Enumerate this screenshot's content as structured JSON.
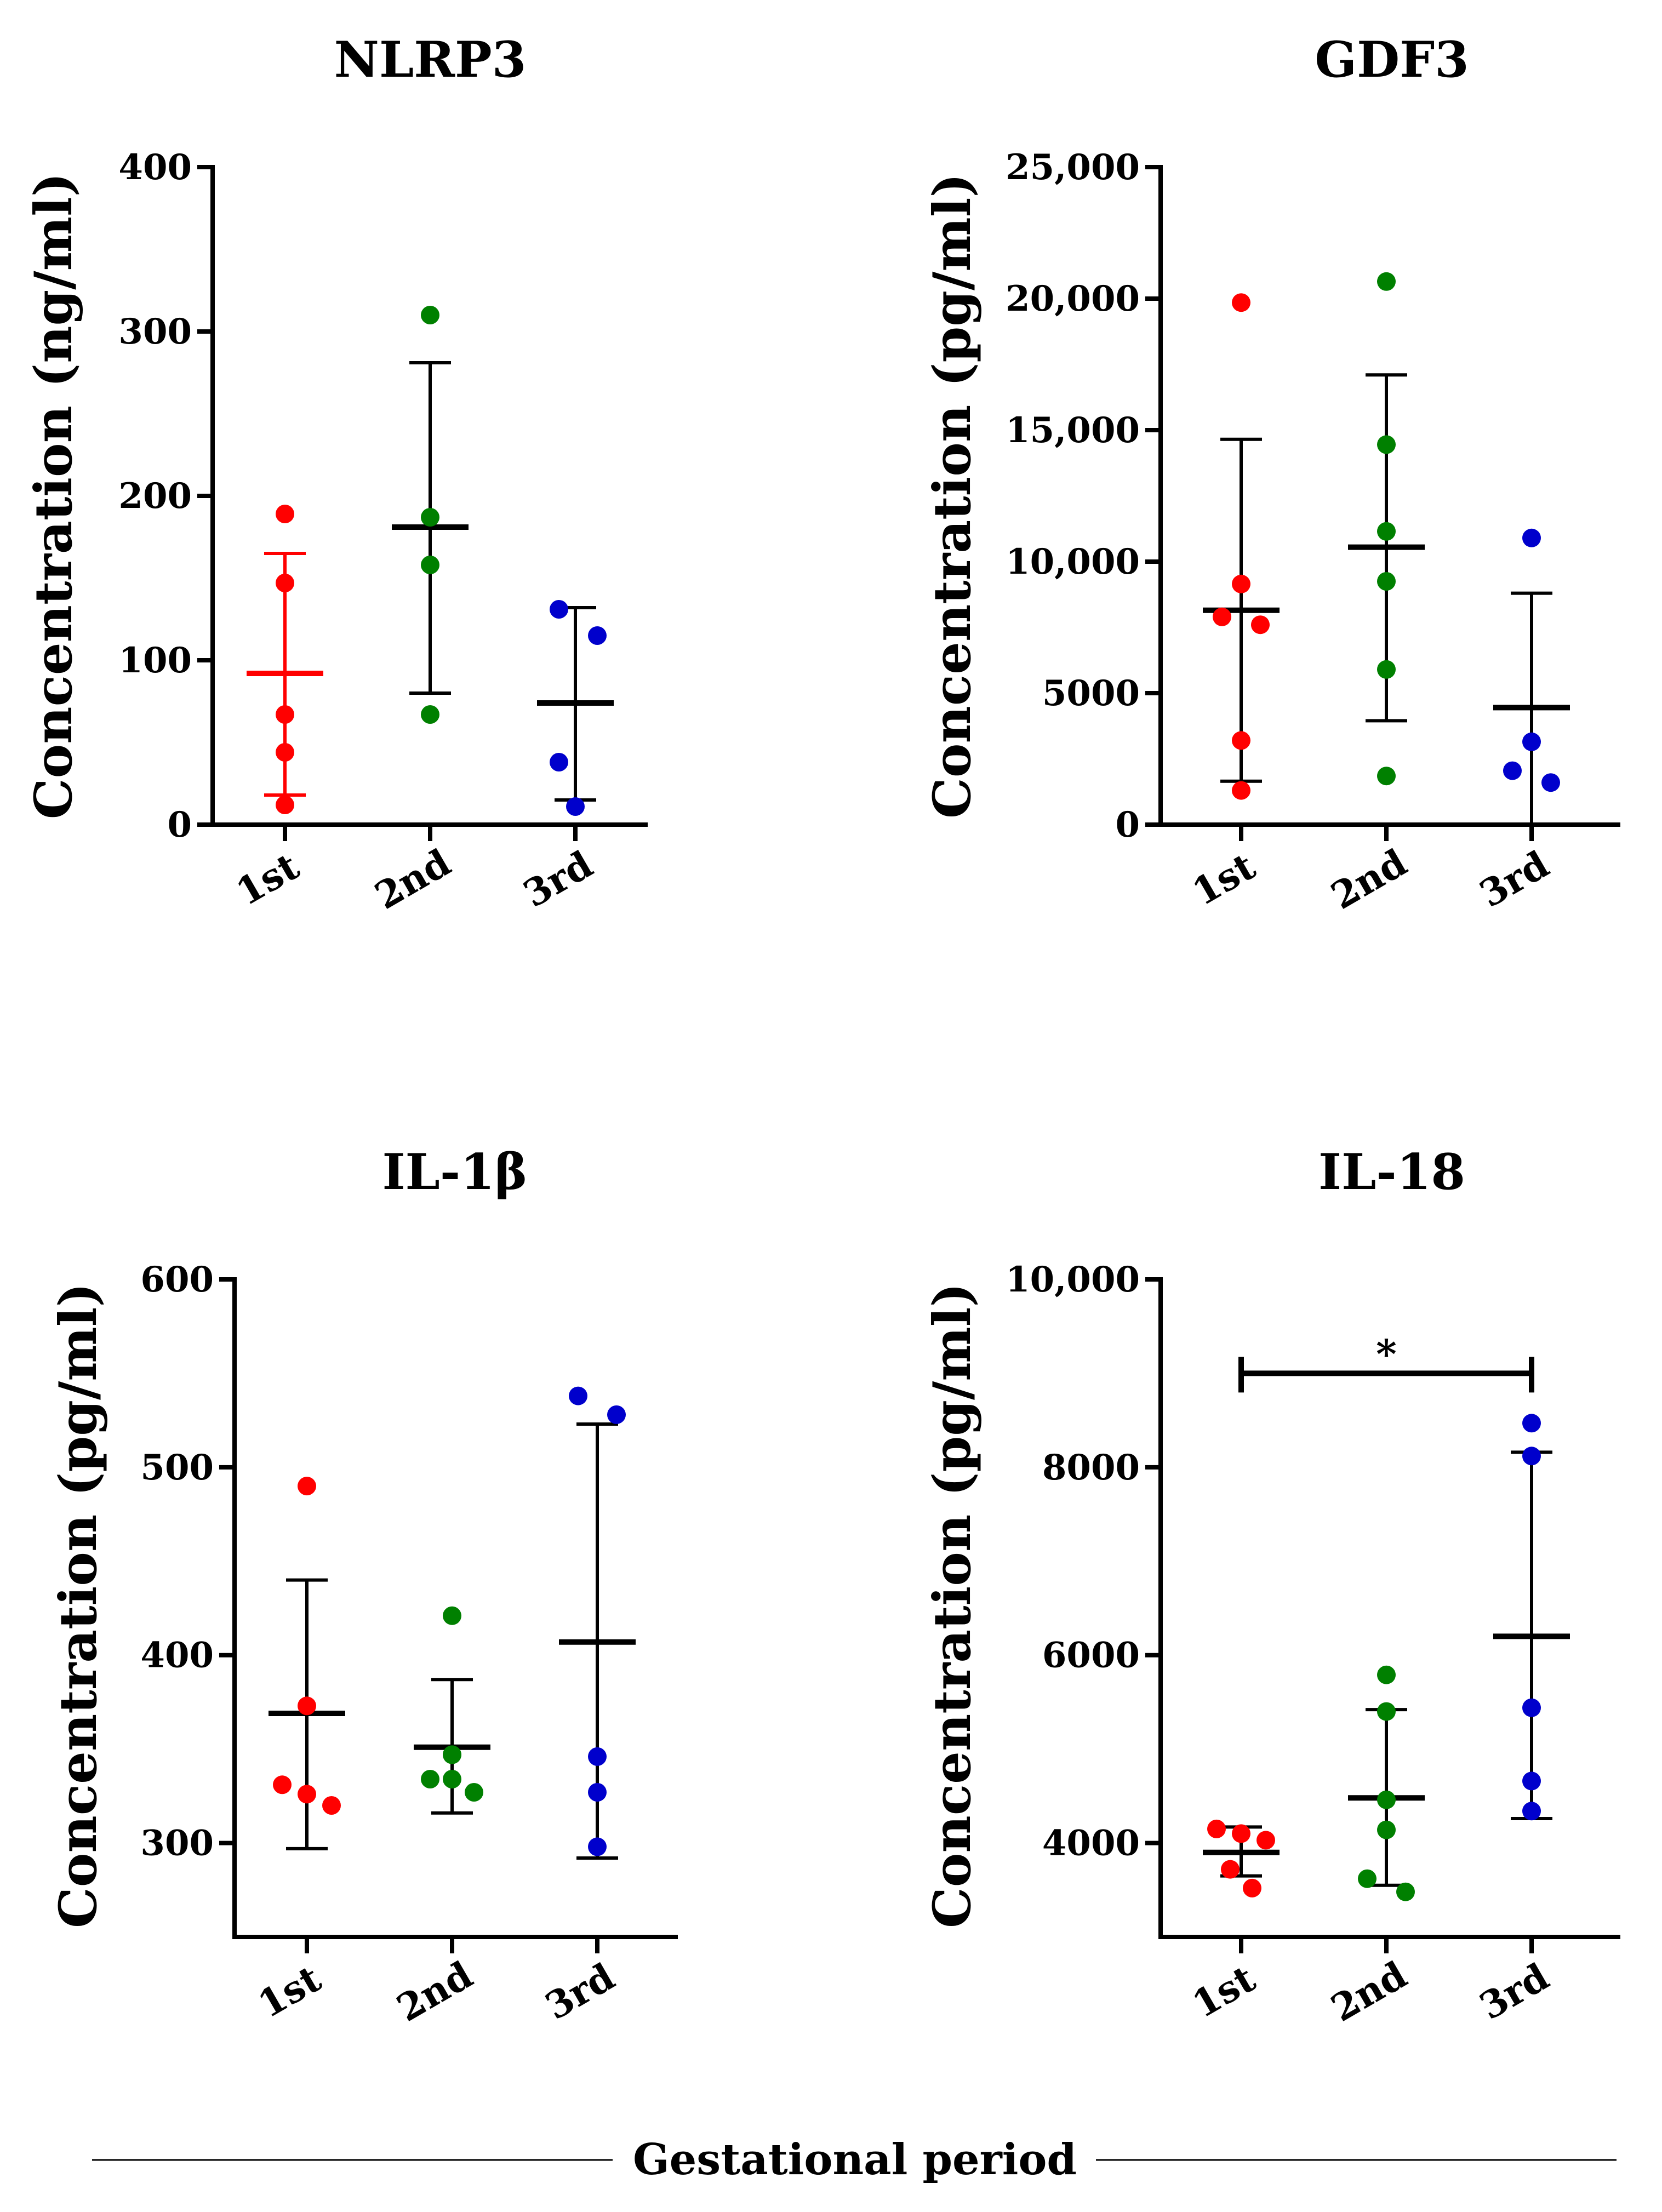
{
  "footer": {
    "xlabel": "Gestational period"
  },
  "colors": {
    "1st": "#ff0000",
    "2nd": "#008000",
    "3rd": "#0000cc",
    "axis": "#000000"
  },
  "chart_data": [
    {
      "type": "scatter",
      "title": "NLRP3",
      "ylabel": "Concentration (ng/ml)",
      "categories": [
        "1st",
        "2nd",
        "3rd"
      ],
      "ylim": [
        0,
        400
      ],
      "yticks": [
        0,
        100,
        200,
        300,
        400
      ],
      "ytick_labels": [
        "0",
        "100",
        "200",
        "300",
        "400"
      ],
      "series": [
        {
          "name": "1st",
          "points": [
            189,
            147,
            67,
            44,
            12
          ],
          "mean": 92,
          "err_low": 18,
          "err_high": 165,
          "error_color": "#ff0000"
        },
        {
          "name": "2nd",
          "points": [
            310,
            187,
            158,
            67
          ],
          "mean": 181,
          "err_low": 80,
          "err_high": 281,
          "error_color": "#000000"
        },
        {
          "name": "3rd",
          "points": [
            131,
            115,
            38,
            11
          ],
          "mean": 74,
          "err_low": 15,
          "err_high": 132,
          "error_color": "#000000"
        }
      ],
      "significance": []
    },
    {
      "type": "scatter",
      "title": "GDF3",
      "ylabel": "Concentration (pg/ml)",
      "categories": [
        "1st",
        "2nd",
        "3rd"
      ],
      "ylim": [
        0,
        25000
      ],
      "yticks": [
        0,
        5000,
        10000,
        15000,
        20000,
        25000
      ],
      "ytick_labels": [
        "0",
        "5000",
        "10,000",
        "15,000",
        "20,000",
        "25,000"
      ],
      "series": [
        {
          "name": "1st",
          "points": [
            19850,
            9150,
            7900,
            7600,
            3200,
            1300
          ],
          "mean": 8150,
          "err_low": 1650,
          "err_high": 14650,
          "error_color": "#000000"
        },
        {
          "name": "2nd",
          "points": [
            20650,
            14450,
            11150,
            9250,
            5900,
            1850
          ],
          "mean": 10550,
          "err_low": 3950,
          "err_high": 17100,
          "error_color": "#000000"
        },
        {
          "name": "3rd",
          "points": [
            10900,
            3150,
            2050,
            1600
          ],
          "mean": 4450,
          "err_low": 0,
          "err_high": 8800,
          "error_color": "#000000"
        }
      ],
      "significance": []
    },
    {
      "type": "scatter",
      "title": "IL-1β",
      "ylabel": "Concentration (pg/ml)",
      "categories": [
        "1st",
        "2nd",
        "3rd"
      ],
      "ylim": [
        250,
        600
      ],
      "yticks": [
        300,
        400,
        500,
        600
      ],
      "ytick_labels": [
        "300",
        "400",
        "500",
        "600"
      ],
      "series": [
        {
          "name": "1st",
          "points": [
            490,
            373,
            331,
            326,
            320
          ],
          "mean": 369,
          "err_low": 297,
          "err_high": 440,
          "error_color": "#000000"
        },
        {
          "name": "2nd",
          "points": [
            421,
            347,
            347,
            334,
            334,
            327
          ],
          "mean": 351,
          "err_low": 316,
          "err_high": 387,
          "error_color": "#000000"
        },
        {
          "name": "3rd",
          "points": [
            538,
            528,
            346,
            327,
            298
          ],
          "mean": 407,
          "err_low": 292,
          "err_high": 523,
          "error_color": "#000000"
        }
      ],
      "significance": []
    },
    {
      "type": "scatter",
      "title": "IL-18",
      "ylabel": "Concentration (pg/ml)",
      "categories": [
        "1st",
        "2nd",
        "3rd"
      ],
      "ylim": [
        3000,
        10000
      ],
      "yticks": [
        4000,
        6000,
        8000,
        10000
      ],
      "ytick_labels": [
        "4000",
        "6000",
        "8000",
        "10,000"
      ],
      "series": [
        {
          "name": "1st",
          "points": [
            4150,
            4100,
            4030,
            3720,
            3520
          ],
          "mean": 3900,
          "err_low": 3650,
          "err_high": 4170,
          "error_color": "#000000"
        },
        {
          "name": "2nd",
          "points": [
            5790,
            5400,
            4460,
            4140,
            3620,
            3480
          ],
          "mean": 4480,
          "err_low": 3550,
          "err_high": 5420,
          "error_color": "#000000"
        },
        {
          "name": "3rd",
          "points": [
            8470,
            8120,
            5440,
            4660,
            4340
          ],
          "mean": 6200,
          "err_low": 4260,
          "err_high": 8160,
          "error_color": "#000000"
        }
      ],
      "significance": [
        {
          "from": "1st",
          "to": "3rd",
          "y": 9000,
          "label": "*"
        }
      ]
    }
  ]
}
